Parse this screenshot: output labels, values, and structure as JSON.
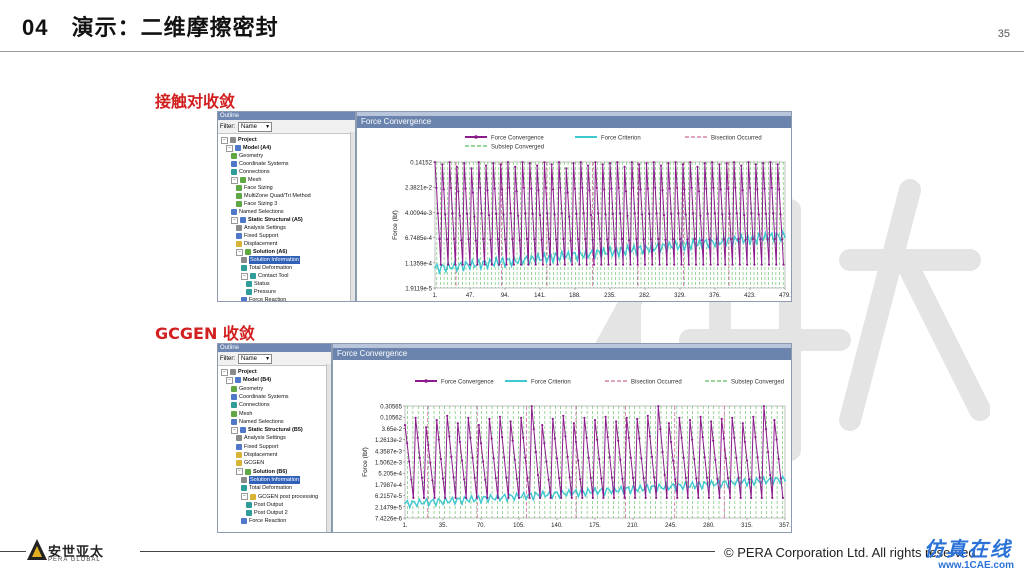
{
  "slide": {
    "number_label": "04",
    "title": "演示：二维摩擦密封",
    "page_number": "35"
  },
  "section1": {
    "heading": "接触对收敛",
    "outline": {
      "bar_title": "Outline",
      "filter_label": "Filter:",
      "filter_value": "Name",
      "items": [
        {
          "label": "Project",
          "depth": 0,
          "bold": true,
          "icon": "project-icon"
        },
        {
          "label": "Model (A4)",
          "depth": 1,
          "bold": true,
          "icon": "model-icon"
        },
        {
          "label": "Geometry",
          "depth": 2,
          "bold": false,
          "icon": "geometry-icon"
        },
        {
          "label": "Coordinate Systems",
          "depth": 2,
          "bold": false,
          "icon": "coordinate-systems-icon"
        },
        {
          "label": "Connections",
          "depth": 2,
          "bold": false,
          "icon": "connections-icon"
        },
        {
          "label": "Mesh",
          "depth": 2,
          "bold": false,
          "icon": "mesh-icon"
        },
        {
          "label": "Face Sizing",
          "depth": 3,
          "bold": false,
          "icon": "mesh-control-icon"
        },
        {
          "label": "MultiZone Quad/Tri Method",
          "depth": 3,
          "bold": false,
          "icon": "mesh-control-icon"
        },
        {
          "label": "Face Sizing 3",
          "depth": 3,
          "bold": false,
          "icon": "mesh-control-icon"
        },
        {
          "label": "Named Selections",
          "depth": 2,
          "bold": false,
          "icon": "named-selections-icon"
        },
        {
          "label": "Static Structural (A5)",
          "depth": 2,
          "bold": true,
          "icon": "static-structural-icon"
        },
        {
          "label": "Analysis Settings",
          "depth": 3,
          "bold": false,
          "icon": "analysis-settings-icon"
        },
        {
          "label": "Fixed Support",
          "depth": 3,
          "bold": false,
          "icon": "fixed-support-icon"
        },
        {
          "label": "Displacement",
          "depth": 3,
          "bold": false,
          "icon": "displacement-icon"
        },
        {
          "label": "Solution (A6)",
          "depth": 3,
          "bold": true,
          "icon": "solution-icon"
        },
        {
          "label": "Solution Information",
          "depth": 4,
          "bold": false,
          "icon": "solution-information-icon",
          "selected": true
        },
        {
          "label": "Total Deformation",
          "depth": 4,
          "bold": false,
          "icon": "result-icon"
        },
        {
          "label": "Contact Tool",
          "depth": 4,
          "bold": false,
          "icon": "contact-tool-icon"
        },
        {
          "label": "Status",
          "depth": 5,
          "bold": false,
          "icon": "result-icon"
        },
        {
          "label": "Pressure",
          "depth": 5,
          "bold": false,
          "icon": "result-icon"
        },
        {
          "label": "Force Reaction",
          "depth": 4,
          "bold": false,
          "icon": "force-reaction-icon"
        }
      ]
    },
    "chart_title": "Force Convergence"
  },
  "section2": {
    "heading": "GCGEN 收敛",
    "outline": {
      "bar_title": "Outline",
      "filter_label": "Filter:",
      "filter_value": "Name",
      "items": [
        {
          "label": "Project",
          "depth": 0,
          "bold": true,
          "icon": "project-icon"
        },
        {
          "label": "Model (B4)",
          "depth": 1,
          "bold": true,
          "icon": "model-icon"
        },
        {
          "label": "Geometry",
          "depth": 2,
          "bold": false,
          "icon": "geometry-icon"
        },
        {
          "label": "Coordinate Systems",
          "depth": 2,
          "bold": false,
          "icon": "coordinate-systems-icon"
        },
        {
          "label": "Connections",
          "depth": 2,
          "bold": false,
          "icon": "connections-icon"
        },
        {
          "label": "Mesh",
          "depth": 2,
          "bold": false,
          "icon": "mesh-icon"
        },
        {
          "label": "Named Selections",
          "depth": 2,
          "bold": false,
          "icon": "named-selections-icon"
        },
        {
          "label": "Static Structural (B5)",
          "depth": 2,
          "bold": true,
          "icon": "static-structural-icon"
        },
        {
          "label": "Analysis Settings",
          "depth": 3,
          "bold": false,
          "icon": "analysis-settings-icon"
        },
        {
          "label": "Fixed Support",
          "depth": 3,
          "bold": false,
          "icon": "fixed-support-icon"
        },
        {
          "label": "Displacement",
          "depth": 3,
          "bold": false,
          "icon": "displacement-icon"
        },
        {
          "label": "GCGEN",
          "depth": 3,
          "bold": false,
          "icon": "command-icon"
        },
        {
          "label": "Solution (B6)",
          "depth": 3,
          "bold": true,
          "icon": "solution-icon"
        },
        {
          "label": "Solution Information",
          "depth": 4,
          "bold": false,
          "icon": "solution-information-icon",
          "selected": true
        },
        {
          "label": "Total Deformation",
          "depth": 4,
          "bold": false,
          "icon": "result-icon"
        },
        {
          "label": "GCGEN post processing",
          "depth": 4,
          "bold": false,
          "icon": "command-icon"
        },
        {
          "label": "Post Output",
          "depth": 5,
          "bold": false,
          "icon": "result-icon"
        },
        {
          "label": "Post Output 2",
          "depth": 5,
          "bold": false,
          "icon": "result-icon"
        },
        {
          "label": "Force Reaction",
          "depth": 4,
          "bold": false,
          "icon": "force-reaction-icon"
        }
      ]
    },
    "chart_title": "Force Convergence"
  },
  "footer": {
    "logo_cn": "安世亚太",
    "logo_en": "PERA GLOBAL",
    "copyright": "© PERA Corporation Ltd. All rights reserved",
    "site_cn": "仿真在线",
    "site_url": "www.1CAE.com"
  },
  "watermark": {
    "text": "1CAE.COM"
  },
  "colors": {
    "title_red": "#d21f1f",
    "force_convergence": "#8b1a8b",
    "force_criterion": "#40c8d0",
    "bisection": "#c04080",
    "substep": "#33aa33"
  },
  "chart_data": [
    {
      "type": "line",
      "title": "Force Convergence",
      "ylabel": "Force (lbf)",
      "yscale": "log",
      "y_tick_labels": [
        "0.14152",
        "2.3821e-2",
        "4.0094e-3",
        "6.7485e-4",
        "1.1359e-4",
        "1.9119e-5"
      ],
      "x_tick_labels": [
        "1.",
        "47.",
        "94.",
        "141.",
        "188.",
        "235.",
        "282.",
        "329.",
        "376.",
        "423.",
        "479."
      ],
      "xlim": [
        1,
        479
      ],
      "ylim": [
        1.9119e-05,
        0.14152
      ],
      "legend": [
        "Force Convergence",
        "Force Criterion",
        "Bisection Occurred",
        "Substep Converged"
      ],
      "legend_position": "top",
      "series": [
        {
          "name": "Force Convergence",
          "cycles": 48,
          "peaks": [
            0.14,
            0.12,
            0.14,
            0.1,
            0.13,
            0.09,
            0.14,
            0.11,
            0.13,
            0.12,
            0.14,
            0.1,
            0.14,
            0.13,
            0.11,
            0.14,
            0.12,
            0.14,
            0.09,
            0.13,
            0.14,
            0.11,
            0.14,
            0.12,
            0.13,
            0.14,
            0.1,
            0.14,
            0.12,
            0.13,
            0.14,
            0.11,
            0.13,
            0.14,
            0.12,
            0.14,
            0.1,
            0.13,
            0.14,
            0.12,
            0.13,
            0.14,
            0.11,
            0.14,
            0.12,
            0.13,
            0.14,
            0.12
          ],
          "floor": 0.0001
        },
        {
          "name": "Force Criterion",
          "start": 8e-05,
          "end": 0.0008
        }
      ]
    },
    {
      "type": "line",
      "title": "Force Convergence",
      "ylabel": "Force (lbf)",
      "yscale": "log",
      "y_tick_labels": [
        "0.30565",
        "0.10562",
        "3.65e-2",
        "1.2613e-2",
        "4.3587e-3",
        "1.5062e-3",
        "5.205e-4",
        "1.7987e-4",
        "6.2157e-5",
        "2.1479e-5",
        "7.4226e-6"
      ],
      "x_tick_labels": [
        "1.",
        "35.",
        "70.",
        "105.",
        "140.",
        "175.",
        "210.",
        "245.",
        "280.",
        "315.",
        "357."
      ],
      "xlim": [
        1,
        357
      ],
      "ylim": [
        7.4226e-06,
        0.30565
      ],
      "legend": [
        "Force Convergence",
        "Force Criterion",
        "Bisection Occurred",
        "Substep Converged"
      ],
      "legend_position": "top",
      "series": [
        {
          "name": "Force Convergence",
          "cycles": 36,
          "peaks": [
            0.05,
            0.1,
            0.04,
            0.08,
            0.12,
            0.06,
            0.1,
            0.05,
            0.09,
            0.11,
            0.07,
            0.1,
            0.3,
            0.05,
            0.09,
            0.12,
            0.06,
            0.1,
            0.08,
            0.11,
            0.07,
            0.1,
            0.09,
            0.12,
            0.3,
            0.06,
            0.1,
            0.08,
            0.11,
            0.07,
            0.09,
            0.1,
            0.06,
            0.11,
            0.3,
            0.08
          ],
          "floor": 5e-05
        },
        {
          "name": "Force Criterion",
          "start": 3e-05,
          "end": 0.0003
        }
      ]
    }
  ]
}
